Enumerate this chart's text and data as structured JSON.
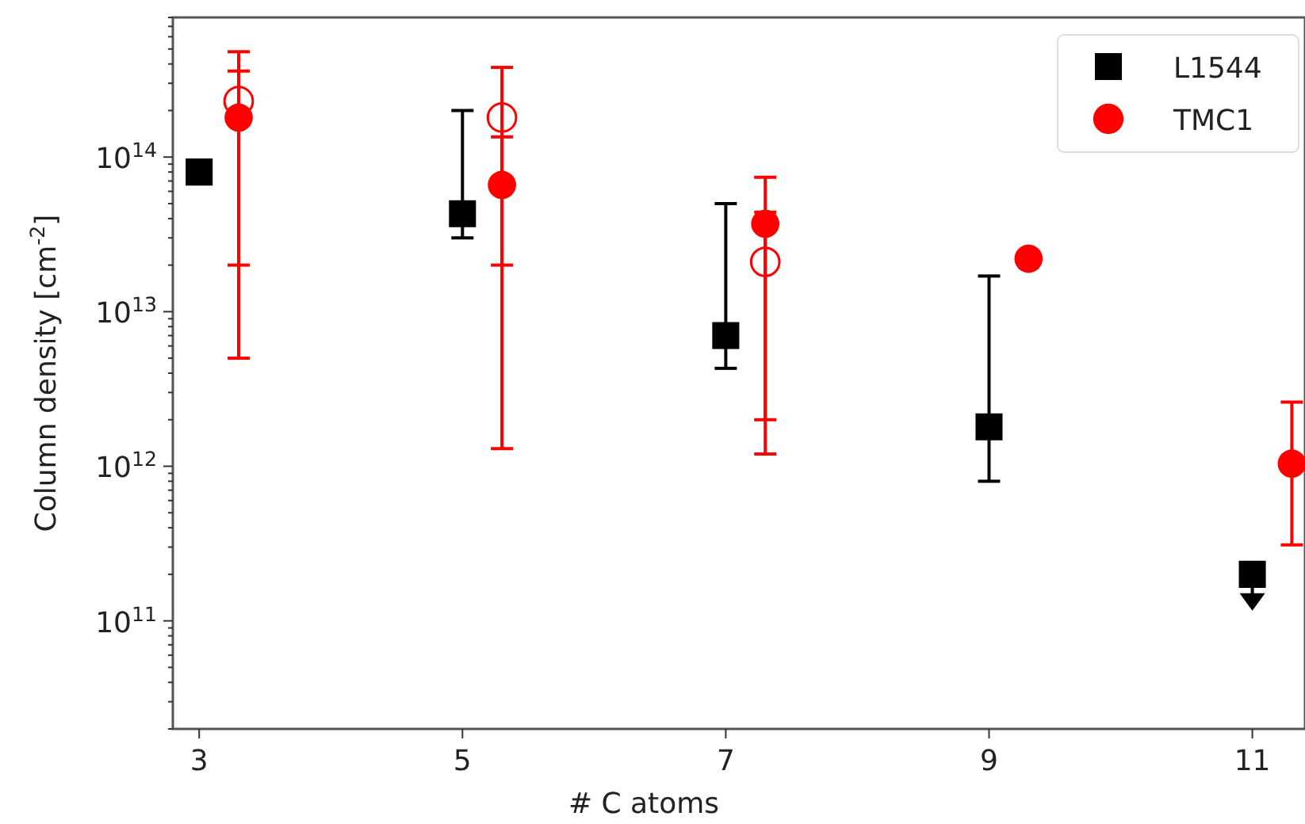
{
  "chart_data": {
    "type": "scatter",
    "xlabel": "# C atoms",
    "ylabel": "Column density [cm$^{-2}$]",
    "log": "y",
    "grid": false,
    "legend": "top right",
    "xlim": [
      2.8,
      11.4
    ],
    "xticks": [
      3,
      5,
      7,
      9,
      11
    ],
    "ylim": [
      20000000000.0,
      800000000000000.0
    ],
    "yticks": [
      {
        "value": 20000000000.0,
        "label": null
      },
      {
        "value": 30000000000.0,
        "label": null
      },
      {
        "value": 40000000000.0,
        "label": null
      },
      {
        "value": 50000000000.0,
        "label": null
      },
      {
        "value": 60000000000.0,
        "label": null
      },
      {
        "value": 70000000000.0,
        "label": null
      },
      {
        "value": 80000000000.0,
        "label": null
      },
      {
        "value": 90000000000.0,
        "label": null
      },
      {
        "value": 100000000000.0,
        "label": "10$^{11}$"
      },
      {
        "value": 200000000000.0,
        "label": null
      },
      {
        "value": 300000000000.0,
        "label": null
      },
      {
        "value": 400000000000.0,
        "label": null
      },
      {
        "value": 500000000000.0,
        "label": null
      },
      {
        "value": 600000000000.0,
        "label": null
      },
      {
        "value": 700000000000.0,
        "label": null
      },
      {
        "value": 800000000000.0,
        "label": null
      },
      {
        "value": 900000000000.0,
        "label": null
      },
      {
        "value": 1000000000000.0,
        "label": "10$^{12}$"
      },
      {
        "value": 2000000000000.0,
        "label": null
      },
      {
        "value": 3000000000000.0,
        "label": null
      },
      {
        "value": 4000000000000.0,
        "label": null
      },
      {
        "value": 5000000000000.0,
        "label": null
      },
      {
        "value": 6000000000000.0,
        "label": null
      },
      {
        "value": 7000000000000.0,
        "label": null
      },
      {
        "value": 8000000000000.0,
        "label": null
      },
      {
        "value": 9000000000000.0,
        "label": null
      },
      {
        "value": 10000000000000.0,
        "label": "10$^{13}$"
      },
      {
        "value": 20000000000000.0,
        "label": null
      },
      {
        "value": 30000000000000.0,
        "label": null
      },
      {
        "value": 40000000000000.0,
        "label": null
      },
      {
        "value": 50000000000000.0,
        "label": null
      },
      {
        "value": 60000000000000.0,
        "label": null
      },
      {
        "value": 70000000000000.0,
        "label": null
      },
      {
        "value": 80000000000000.0,
        "label": null
      },
      {
        "value": 90000000000000.0,
        "label": null
      },
      {
        "value": 100000000000000.0,
        "label": "10$^{14}$"
      },
      {
        "value": 200000000000000.0,
        "label": null
      },
      {
        "value": 300000000000000.0,
        "label": null
      },
      {
        "value": 400000000000000.0,
        "label": null
      },
      {
        "value": 500000000000000.0,
        "label": null
      },
      {
        "value": 600000000000000.0,
        "label": null
      },
      {
        "value": 700000000000000.0,
        "label": null
      },
      {
        "value": 800000000000000.0,
        "label": null
      }
    ],
    "series": [
      {
        "name": "L1544",
        "color": "#000000",
        "marker": "square",
        "x": [
          3,
          5,
          7,
          9,
          11
        ],
        "values": [
          80000000000000.0,
          43000000000000.0,
          7000000000000.0,
          1800000000000.0,
          200000000000.0
        ],
        "errors": [
          null,
          [
            30000000000000.0,
            200000000000000.0
          ],
          [
            4300000000000.0,
            50000000000000.0
          ],
          [
            800000000000.0,
            17000000000000.0
          ],
          null
        ]
      },
      {
        "name": "TMC1",
        "color": "#ff0000",
        "marker": "circle",
        "x": [
          3.3,
          5.3,
          7.3,
          9.3,
          11.3
        ],
        "values": [
          180000000000000.0,
          66000000000000.0,
          37000000000000.0,
          22000000000000.0,
          1040000000000.0
        ],
        "errors": [
          [
            20000000000000.0,
            360000000000000.0
          ],
          [
            20000000000000.0,
            135000000000000.0
          ],
          [
            2000000000000.0,
            44000000000000.0
          ],
          null,
          [
            310000000000.0,
            2600000000000.0
          ]
        ]
      },
      {
        "color": "#ff0000",
        "marker": "circle",
        "x": [
          3.3,
          5.3,
          7.3
        ],
        "values": [
          230000000000000.0,
          180000000000000.0,
          21000000000000.0
        ],
        "errors": [
          [
            5000000000000.0,
            480000000000000.0
          ],
          [
            1300000000000.0,
            380000000000000.0
          ],
          [
            1200000000000.0,
            74000000000000.0
          ]
        ]
      }
    ]
  }
}
